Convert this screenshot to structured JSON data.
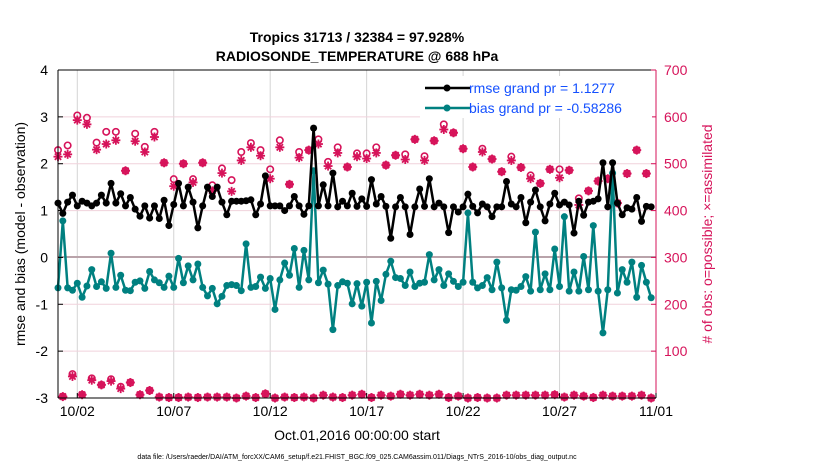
{
  "chart_data": {
    "type": "line",
    "title": [
      "Tropics 31713 / 32384 = 97.928%",
      "RADIOSONDE_TEMPERATURE @ 688 hPa"
    ],
    "xlabel": "Oct.01,2016 00:00:00 start",
    "ylabel": "rmse and bias (model - observation)",
    "ylabel_right": "# of obs: o=possible; ×=assimilated",
    "footer": "data file: /Users/raeder/DAI/ATM_forcXX/CAM6_setup/f.e21.FHIST_BGC.f09_025.CAM6assim.011/Diags_NTrS_2016-10/obs_diag_output.nc",
    "xlim_days": [
      1,
      32
    ],
    "ylim": [
      -3,
      4
    ],
    "ylim_right": [
      0,
      700
    ],
    "x_ticks": [
      {
        "day": 2,
        "label": "10/02"
      },
      {
        "day": 7,
        "label": "10/07"
      },
      {
        "day": 12,
        "label": "10/12"
      },
      {
        "day": 17,
        "label": "10/17"
      },
      {
        "day": 22,
        "label": "10/22"
      },
      {
        "day": 27,
        "label": "10/27"
      },
      {
        "day": 32,
        "label": "11/01"
      }
    ],
    "y_ticks": [
      "4",
      "3",
      "2",
      "1",
      "0",
      "-1",
      "-2",
      "-3"
    ],
    "y_ticks_right": [
      "700",
      "600",
      "500",
      "400",
      "300",
      "200",
      "100"
    ],
    "grid": true,
    "legend_position": "top-right",
    "colors": {
      "rmse": "#000000",
      "bias": "#008080",
      "obs": "#d6135a",
      "legend_text": "#1450ff"
    },
    "series": [
      {
        "name": "rmse",
        "legend": "rmse grand pr = 1.1277",
        "x_start_day": 1,
        "step_days": 0.25,
        "values": [
          1.16,
          0.94,
          1.18,
          1.33,
          1.1,
          1.2,
          1.16,
          1.1,
          1.16,
          1.33,
          1.16,
          1.58,
          1.16,
          1.36,
          1.1,
          1.28,
          1.03,
          0.88,
          1.1,
          0.84,
          1.1,
          0.83,
          1.22,
          0.68,
          1.13,
          1.58,
          1.1,
          1.5,
          1.18,
          0.63,
          1.1,
          1.5,
          1.3,
          1.5,
          1.18,
          0.91,
          1.2,
          1.2,
          1.2,
          1.21,
          1.23,
          0.91,
          1.14,
          1.74,
          1.1,
          1.1,
          1.1,
          1.0,
          1.1,
          1.3,
          1.1,
          0.92,
          1.1,
          2.76,
          1.1,
          1.55,
          1.1,
          1.8,
          1.08,
          1.2,
          1.1,
          1.37,
          1.09,
          1.25,
          1.09,
          1.66,
          1.14,
          1.3,
          1.09,
          0.41,
          1.08,
          1.28,
          1.08,
          0.49,
          1.08,
          1.46,
          1.09,
          1.68,
          1.08,
          1.16,
          1.08,
          0.53,
          1.08,
          0.97,
          1.08,
          1.35,
          1.09,
          0.95,
          1.14,
          1.08,
          0.87,
          1.08,
          1.08,
          1.62,
          1.14,
          1.08,
          1.28,
          0.74,
          1.18,
          1.44,
          1.08,
          0.78,
          1.14,
          1.37,
          1.12,
          1.18,
          1.12,
          0.52,
          1.2,
          0.9,
          1.18,
          1.2,
          1.25,
          2.02,
          1.08,
          2.02,
          1.16,
          0.91,
          1.06,
          1.03,
          1.28,
          0.77,
          1.09,
          1.08
        ]
      },
      {
        "name": "bias",
        "legend": "bias grand pr = -0.58286",
        "x_start_day": 1,
        "step_days": 0.25,
        "values": [
          -0.65,
          0.78,
          -0.65,
          -0.7,
          -0.55,
          -0.85,
          -0.61,
          -0.26,
          -0.62,
          -0.52,
          -0.66,
          0.09,
          -0.64,
          -0.38,
          -0.7,
          -0.71,
          -0.53,
          -0.5,
          -0.66,
          -0.3,
          -0.48,
          -0.54,
          -0.64,
          -0.4,
          -0.64,
          -0.02,
          -0.54,
          -0.18,
          -0.48,
          -0.14,
          -0.64,
          -0.82,
          -0.66,
          -0.99,
          -0.83,
          -0.6,
          -0.58,
          -0.6,
          -0.71,
          0.29,
          -0.64,
          -0.62,
          -0.42,
          -0.66,
          -0.45,
          -1.11,
          -0.48,
          -0.12,
          -0.38,
          0.19,
          -0.64,
          0.15,
          -0.48,
          1.85,
          -0.54,
          -0.27,
          -0.57,
          -1.54,
          -0.6,
          -0.52,
          -0.55,
          -0.99,
          -0.56,
          -1.04,
          -0.53,
          -1.4,
          -0.51,
          -0.92,
          -0.36,
          -0.08,
          -0.43,
          -0.45,
          -0.6,
          -0.31,
          -0.62,
          -0.55,
          -0.53,
          0.06,
          -0.48,
          -0.26,
          -0.6,
          -0.35,
          -0.51,
          -0.62,
          -0.53,
          0.95,
          -0.53,
          -0.65,
          -0.6,
          -0.43,
          -0.69,
          -0.1,
          -0.65,
          -1.34,
          -0.69,
          -0.7,
          -0.62,
          -0.41,
          -0.72,
          0.54,
          -0.69,
          -0.35,
          -0.69,
          0.18,
          -0.62,
          0.87,
          -0.72,
          -0.31,
          -0.72,
          0.02,
          -0.69,
          0.68,
          -0.72,
          -1.61,
          -0.69,
          1.8,
          -0.76,
          -0.26,
          -0.53,
          -0.1,
          -0.85,
          -0.17,
          -0.53,
          -0.86
        ]
      }
    ],
    "obs_counts": [
      {
        "x_start_day": 1,
        "step_days": 0.5,
        "possible": [
          529,
          539,
          603,
          598,
          545,
          568,
          568,
          485,
          564,
          536,
          568,
          502,
          467,
          500,
          467,
          502,
          454,
          490,
          465,
          525,
          544,
          529,
          488,
          550,
          456,
          525,
          529,
          552,
          504,
          535,
          493,
          522,
          522,
          535,
          497,
          518,
          520,
          552,
          516,
          549,
          584,
          566,
          532,
          493,
          532,
          510,
          483,
          515,
          492,
          475,
          458,
          488,
          488,
          486,
          426,
          442,
          463,
          468,
          416,
          479,
          529,
          479
        ],
        "assimilated": [
          515,
          520,
          593,
          584,
          530,
          542,
          550,
          485,
          548,
          525,
          557,
          502,
          452,
          500,
          460,
          502,
          442,
          480,
          441,
          507,
          535,
          517,
          468,
          535,
          456,
          513,
          529,
          542,
          495,
          523,
          493,
          515,
          511,
          523,
          497,
          518,
          509,
          552,
          507,
          549,
          573,
          566,
          532,
          493,
          525,
          510,
          483,
          507,
          492,
          468,
          458,
          488,
          470,
          486,
          412,
          442,
          463,
          468,
          416,
          479,
          529,
          479
        ]
      },
      {
        "x_start_day": 1.25,
        "step_days": 0.5,
        "possible": [
          3,
          51,
          7,
          42,
          28,
          40,
          24,
          33,
          7,
          16,
          2,
          1,
          1,
          2,
          1,
          2,
          2,
          2,
          0,
          4,
          1,
          9,
          0,
          2,
          1,
          2,
          0,
          6,
          2,
          1,
          6,
          8,
          1,
          6,
          4,
          8,
          6,
          8,
          6,
          8,
          1,
          4,
          0,
          1,
          0,
          0,
          6,
          6,
          6,
          6,
          6,
          7,
          2,
          6,
          4,
          1,
          6,
          4,
          4,
          4,
          6,
          0
        ],
        "assimilated": [
          3,
          46,
          7,
          38,
          28,
          36,
          20,
          33,
          7,
          16,
          2,
          1,
          1,
          2,
          1,
          2,
          2,
          2,
          0,
          4,
          1,
          9,
          0,
          2,
          1,
          2,
          0,
          6,
          2,
          1,
          6,
          8,
          1,
          6,
          4,
          8,
          6,
          8,
          6,
          8,
          1,
          4,
          0,
          1,
          0,
          0,
          6,
          6,
          6,
          6,
          6,
          7,
          2,
          6,
          4,
          1,
          6,
          4,
          4,
          4,
          6,
          0
        ]
      }
    ]
  }
}
